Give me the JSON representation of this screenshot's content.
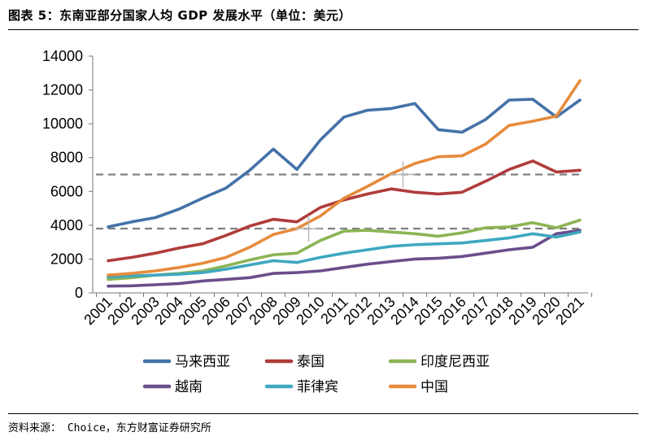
{
  "title": "图表 5：东南亚部分国家人均 GDP 发展水平（单位：美元）",
  "source": "资料来源： Choice，东方财富证券研究所",
  "chart_data": {
    "type": "line",
    "title": "",
    "xlabel": "",
    "ylabel": "",
    "categories": [
      "2001",
      "2002",
      "2003",
      "2004",
      "2005",
      "2006",
      "2007",
      "2008",
      "2009",
      "2010",
      "2011",
      "2012",
      "2013",
      "2014",
      "2015",
      "2016",
      "2017",
      "2018",
      "2019",
      "2020",
      "2021"
    ],
    "ylim": [
      0,
      14000
    ],
    "yticks": [
      0,
      2000,
      4000,
      6000,
      8000,
      10000,
      12000,
      14000
    ],
    "grid": false,
    "legend": "bottom",
    "reference_lines": [
      7000,
      3800
    ],
    "series": [
      {
        "name": "马来西亚",
        "color": "#4472A8",
        "values": [
          3900,
          4200,
          4450,
          4950,
          5600,
          6200,
          7250,
          8500,
          7300,
          9050,
          10400,
          10800,
          10900,
          11200,
          9650,
          9500,
          10250,
          11400,
          11450,
          10400,
          11400
        ]
      },
      {
        "name": "泰国",
        "color": "#B03C3A",
        "values": [
          1900,
          2100,
          2350,
          2650,
          2900,
          3400,
          3950,
          4350,
          4200,
          5050,
          5500,
          5850,
          6150,
          5950,
          5850,
          5950,
          6600,
          7300,
          7800,
          7150,
          7250
        ]
      },
      {
        "name": "印度尼西亚",
        "color": "#8CB454",
        "values": [
          800,
          900,
          1050,
          1150,
          1300,
          1600,
          1950,
          2250,
          2350,
          3100,
          3650,
          3700,
          3600,
          3500,
          3350,
          3550,
          3850,
          3900,
          4150,
          3850,
          4300
        ]
      },
      {
        "name": "越南",
        "color": "#6B4E8C",
        "values": [
          400,
          420,
          480,
          550,
          700,
          800,
          900,
          1150,
          1200,
          1300,
          1500,
          1700,
          1850,
          2000,
          2050,
          2150,
          2350,
          2550,
          2700,
          3500,
          3700
        ]
      },
      {
        "name": "菲律宾",
        "color": "#3FA8C0",
        "values": [
          950,
          1000,
          1050,
          1100,
          1200,
          1400,
          1650,
          1900,
          1800,
          2100,
          2350,
          2550,
          2750,
          2850,
          2900,
          2950,
          3100,
          3250,
          3500,
          3300,
          3600
        ]
      },
      {
        "name": "中国",
        "color": "#E68B3C",
        "values": [
          1050,
          1150,
          1300,
          1500,
          1750,
          2100,
          2700,
          3450,
          3800,
          4550,
          5600,
          6300,
          7050,
          7650,
          8050,
          8100,
          8800,
          9900,
          10150,
          10450,
          12550
        ]
      }
    ]
  }
}
